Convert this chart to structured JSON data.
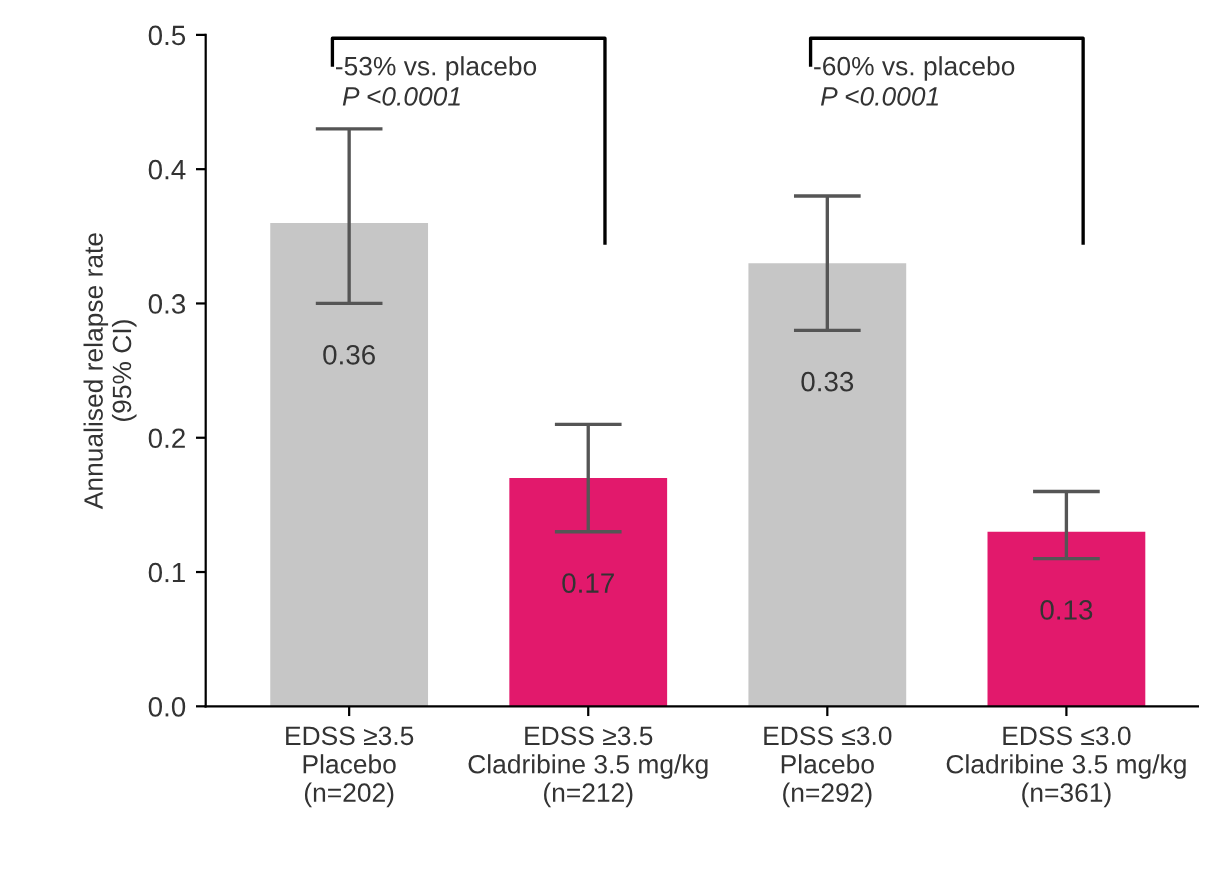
{
  "chart_data": {
    "type": "bar",
    "ylabel": "Annualised relapse rate\n(95% CI)",
    "categories": [
      "EDSS ≥3.5\nPlacebo\n(n=202)",
      "EDSS ≥3.5\nCladribine 3.5 mg/kg\n(n=212)",
      "EDSS ≤3.0\nPlacebo\n(n=292)",
      "EDSS ≤3.0\nCladribine 3.5 mg/kg\n(n=361)"
    ],
    "values": [
      0.36,
      0.17,
      0.33,
      0.13
    ],
    "colors": [
      "#c6c6c6",
      "#e2196c",
      "#c6c6c6",
      "#e2196c"
    ],
    "errors": [
      [
        0.3,
        0.43
      ],
      [
        0.13,
        0.21
      ],
      [
        0.28,
        0.38
      ],
      [
        0.11,
        0.16
      ]
    ],
    "data_labels": true,
    "ylim": [
      0,
      0.5
    ],
    "yticks": [
      {
        "value": 0,
        "label": "0.0"
      },
      {
        "value": 0.1,
        "label": "0.1"
      },
      {
        "value": 0.2,
        "label": "0.2"
      },
      {
        "value": 0.3,
        "label": "0.3"
      },
      {
        "value": 0.4,
        "label": "0.4"
      },
      {
        "value": 0.5,
        "label": "0.5"
      }
    ],
    "grid": false,
    "legend": false,
    "annotations": [
      "-53% vs. placebo",
      "P <0.0001",
      "-60% vs. placebo",
      "P <0.0001"
    ]
  }
}
